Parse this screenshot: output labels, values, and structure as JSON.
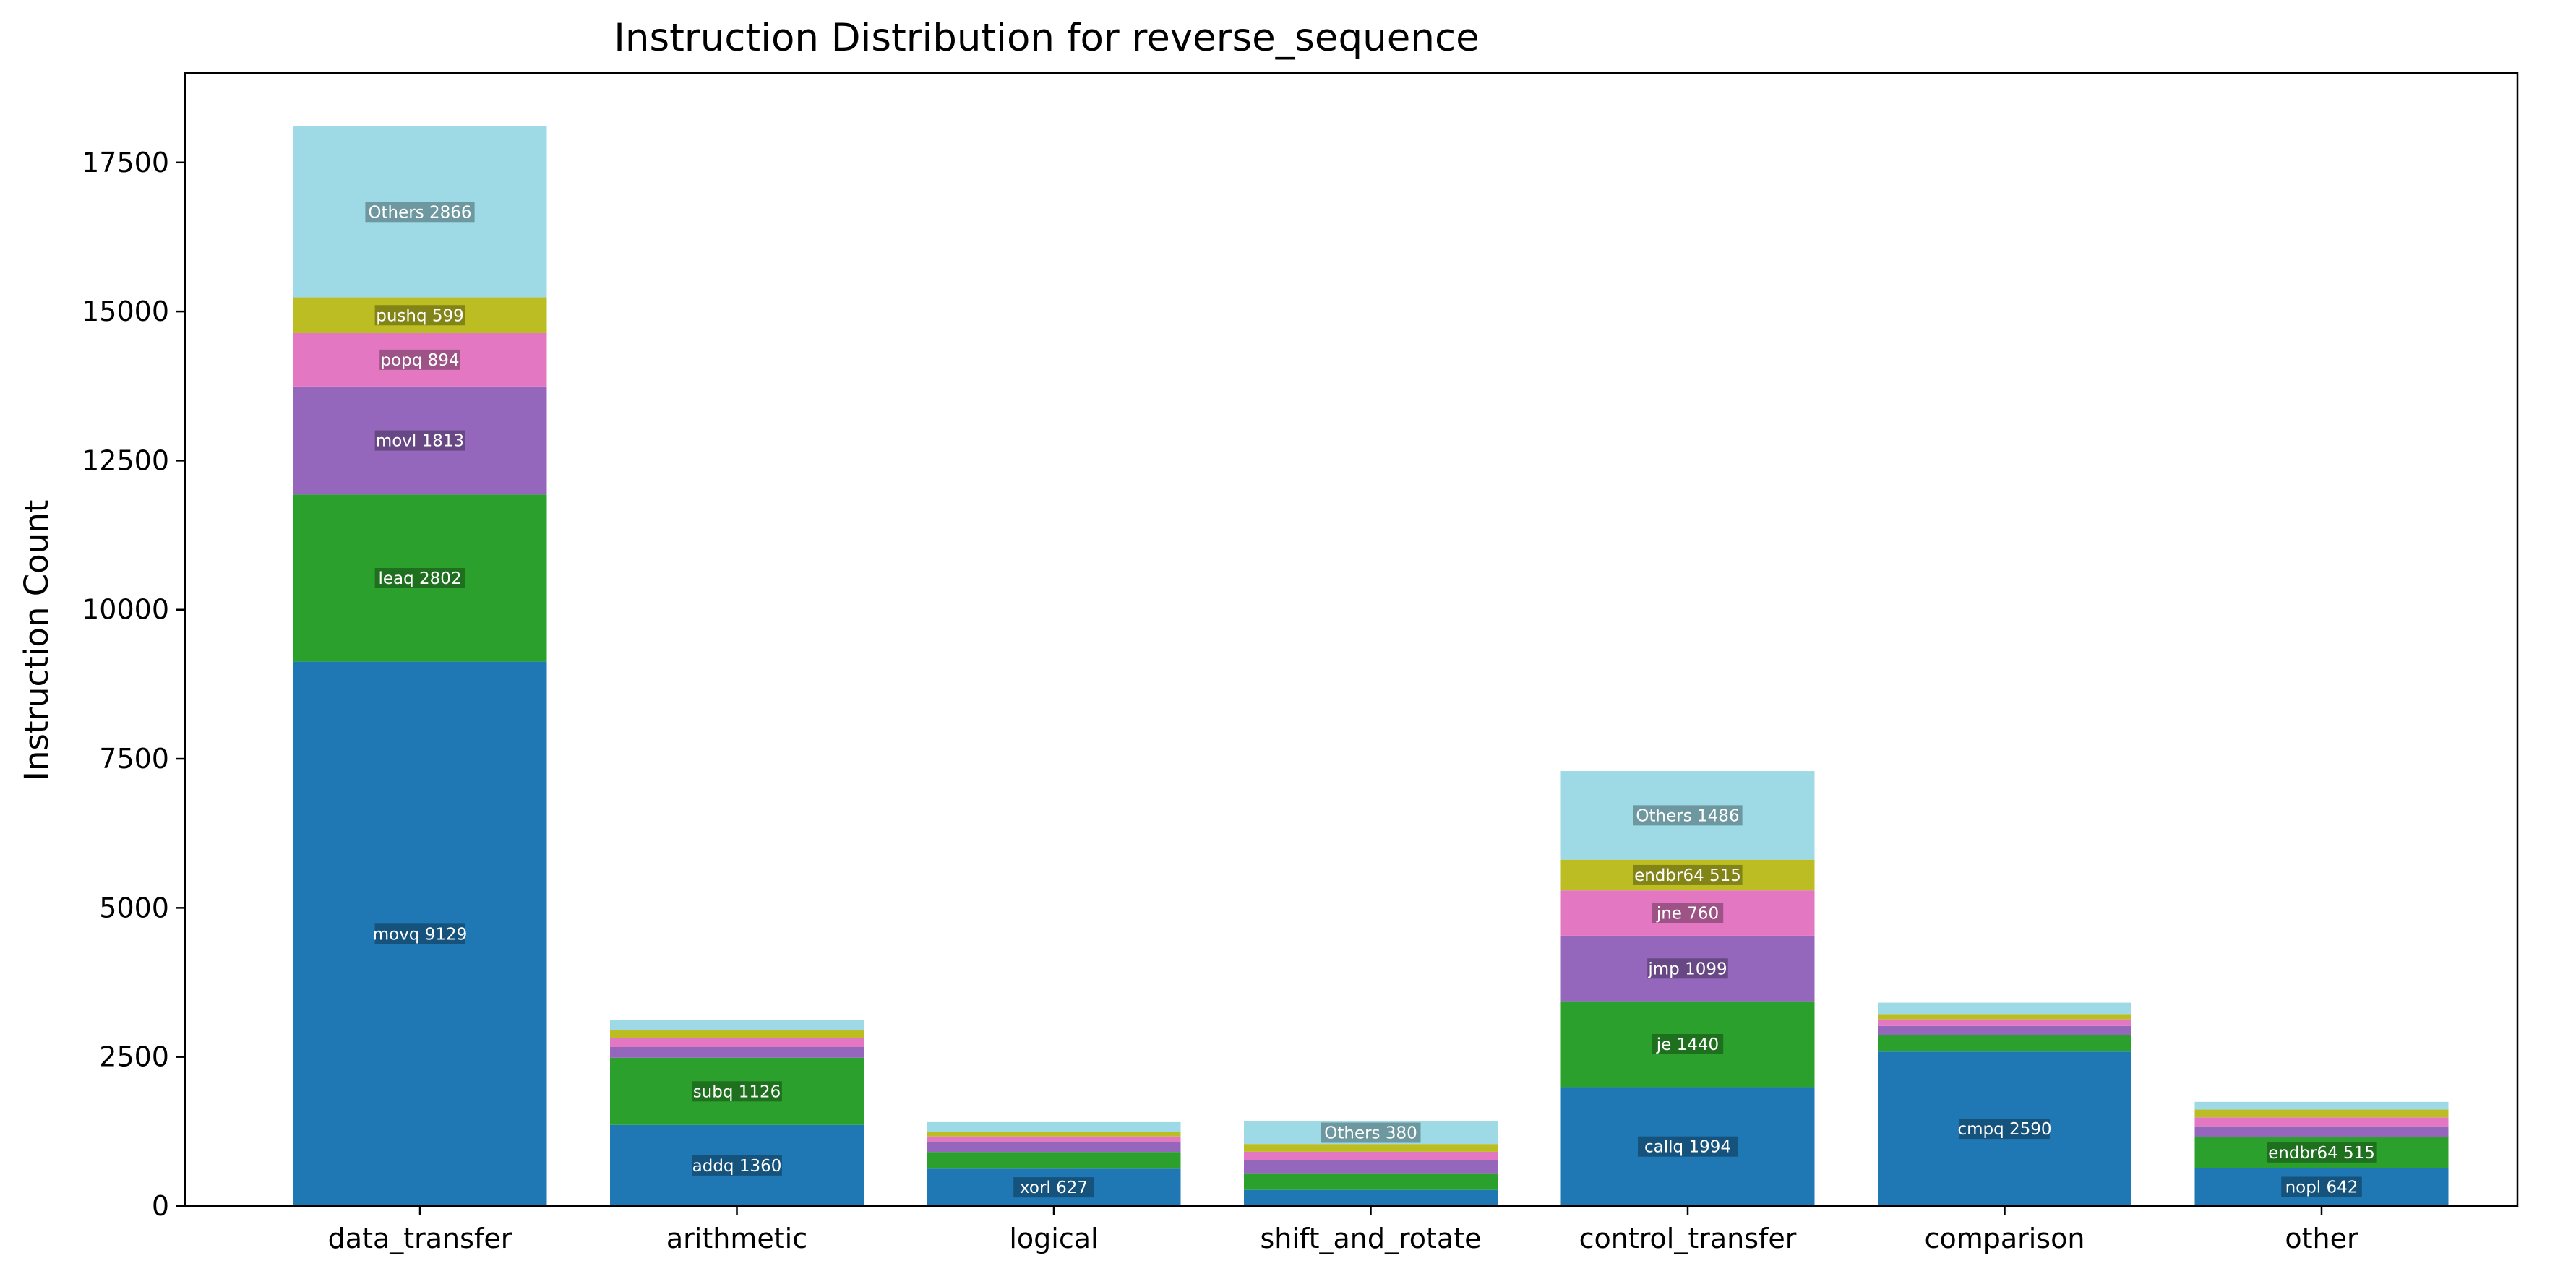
{
  "chart_data": {
    "type": "bar",
    "stacked": true,
    "title": "Instruction Distribution for reverse_sequence",
    "xlabel": "",
    "ylabel": "Instruction Count",
    "ylim": [
      0,
      19000
    ],
    "yticks": [
      0,
      2500,
      5000,
      7500,
      10000,
      12500,
      15000,
      17500
    ],
    "grid": false,
    "legend": "none",
    "layer_colors": [
      "#1f77b4",
      "#2ca02c",
      "#9467bd",
      "#e377c2",
      "#bcbd22",
      "#9edae5"
    ],
    "categories": [
      "data_transfer",
      "arithmetic",
      "logical",
      "shift_and_rotate",
      "control_transfer",
      "comparison",
      "other"
    ],
    "bars": [
      {
        "category": "data_transfer",
        "segments": [
          {
            "value": 9129,
            "label": "movq 9129"
          },
          {
            "value": 2802,
            "label": "leaq 2802"
          },
          {
            "value": 1813,
            "label": "movl 1813"
          },
          {
            "value": 894,
            "label": "popq 894"
          },
          {
            "value": 599,
            "label": "pushq 599"
          },
          {
            "value": 2866,
            "label": "Others 2866"
          }
        ]
      },
      {
        "category": "arithmetic",
        "segments": [
          {
            "value": 1360,
            "label": "addq 1360"
          },
          {
            "value": 1126,
            "label": "subq 1126"
          },
          {
            "value": 180,
            "label": ""
          },
          {
            "value": 150,
            "label": ""
          },
          {
            "value": 130,
            "label": ""
          },
          {
            "value": 180,
            "label": ""
          }
        ]
      },
      {
        "category": "logical",
        "segments": [
          {
            "value": 627,
            "label": "xorl 627"
          },
          {
            "value": 280,
            "label": ""
          },
          {
            "value": 160,
            "label": ""
          },
          {
            "value": 100,
            "label": ""
          },
          {
            "value": 70,
            "label": ""
          },
          {
            "value": 170,
            "label": ""
          }
        ]
      },
      {
        "category": "shift_and_rotate",
        "segments": [
          {
            "value": 270,
            "label": ""
          },
          {
            "value": 280,
            "label": ""
          },
          {
            "value": 220,
            "label": ""
          },
          {
            "value": 140,
            "label": ""
          },
          {
            "value": 130,
            "label": ""
          },
          {
            "value": 380,
            "label": "Others 380"
          }
        ]
      },
      {
        "category": "control_transfer",
        "segments": [
          {
            "value": 1994,
            "label": "callq 1994"
          },
          {
            "value": 1440,
            "label": "je 1440"
          },
          {
            "value": 1099,
            "label": "jmp 1099"
          },
          {
            "value": 760,
            "label": "jne 760"
          },
          {
            "value": 515,
            "label": "endbr64 515"
          },
          {
            "value": 1486,
            "label": "Others 1486"
          }
        ]
      },
      {
        "category": "comparison",
        "segments": [
          {
            "value": 2590,
            "label": "cmpq 2590"
          },
          {
            "value": 280,
            "label": ""
          },
          {
            "value": 150,
            "label": ""
          },
          {
            "value": 110,
            "label": ""
          },
          {
            "value": 90,
            "label": ""
          },
          {
            "value": 190,
            "label": ""
          }
        ]
      },
      {
        "category": "other",
        "segments": [
          {
            "value": 642,
            "label": "nopl 642"
          },
          {
            "value": 515,
            "label": "endbr64 515"
          },
          {
            "value": 180,
            "label": ""
          },
          {
            "value": 150,
            "label": ""
          },
          {
            "value": 130,
            "label": ""
          },
          {
            "value": 130,
            "label": ""
          }
        ]
      }
    ]
  }
}
